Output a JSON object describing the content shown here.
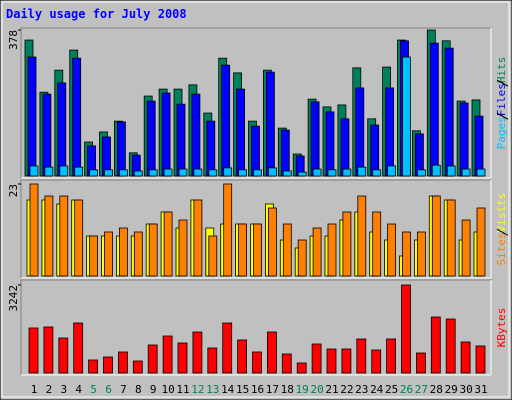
{
  "chart_data": {
    "type": "bar",
    "title": "Daily usage for July 2008",
    "categories": [
      "1",
      "2",
      "3",
      "4",
      "5",
      "6",
      "7",
      "8",
      "9",
      "10",
      "11",
      "12",
      "13",
      "14",
      "15",
      "16",
      "17",
      "18",
      "19",
      "20",
      "21",
      "22",
      "23",
      "24",
      "25",
      "26",
      "27",
      "28",
      "29",
      "30",
      "31"
    ],
    "label_colors": [
      "#000000",
      "#000000",
      "#000000",
      "#000000",
      "#00805c",
      "#00805c",
      "#000000",
      "#000000",
      "#000000",
      "#000000",
      "#000000",
      "#00805c",
      "#00805c",
      "#000000",
      "#000000",
      "#000000",
      "#000000",
      "#000000",
      "#00805c",
      "#00805c",
      "#000000",
      "#000000",
      "#000000",
      "#000000",
      "#000000",
      "#00805c",
      "#00805c",
      "#000000",
      "#000000",
      "#000000",
      "#000000"
    ],
    "panels": [
      {
        "ylim": [
          0,
          378
        ],
        "yticks": [
          378
        ],
        "series": [
          {
            "name": "Hits",
            "color": "#00805c",
            "values": [
              352,
              217,
              274,
              326,
              88,
              114,
              142,
              60,
              207,
              225,
              225,
              236,
              163,
              305,
              267,
              142,
              274,
              124,
              57,
              199,
              179,
              184,
              280,
              148,
              282,
              352,
              117,
              378,
              350,
              194,
              197
            ]
          },
          {
            "name": "Files",
            "color": "#0000ff",
            "values": [
              308,
              212,
              241,
              305,
              78,
              101,
              140,
              54,
              194,
              215,
              186,
              212,
              142,
              287,
              225,
              129,
              269,
              119,
              52,
              192,
              166,
              148,
              228,
              132,
              228,
              350,
              109,
              344,
              331,
              189,
              155
            ]
          },
          {
            "name": "Pages",
            "color": "#00c0ff",
            "values": [
              26,
              23,
              26,
              23,
              16,
              16,
              16,
              13,
              16,
              18,
              18,
              18,
              16,
              21,
              16,
              16,
              21,
              13,
              10,
              18,
              16,
              18,
              23,
              16,
              26,
              308,
              16,
              28,
              26,
              18,
              18
            ]
          }
        ]
      },
      {
        "ylim": [
          0,
          23
        ],
        "yticks": [
          23
        ],
        "series": [
          {
            "name": "Visits",
            "color": "#ffff00",
            "values": [
              19,
              19,
              18,
              19,
              10,
              10,
              10,
              10,
              13,
              16,
              12,
              19,
              12,
              13,
              13,
              13,
              18,
              9,
              7,
              10,
              10,
              14,
              16,
              11,
              9,
              5,
              9,
              20,
              19,
              9,
              11
            ]
          },
          {
            "name": "Sites",
            "color": "#ff8000",
            "values": [
              23,
              20,
              20,
              19,
              10,
              11,
              12,
              11,
              13,
              16,
              14,
              19,
              10,
              23,
              13,
              13,
              17,
              13,
              9,
              12,
              13,
              16,
              20,
              16,
              13,
              11,
              11,
              20,
              19,
              14,
              17
            ]
          }
        ]
      },
      {
        "ylim": [
          0,
          3242
        ],
        "yticks": [
          3242
        ],
        "series": [
          {
            "name": "KBytes",
            "color": "#ff0000",
            "values": [
              1658,
              1695,
              1289,
              1842,
              479,
              589,
              774,
              442,
              1032,
              1363,
              1105,
              1510,
              921,
              1842,
              1216,
              774,
              1510,
              700,
              368,
              1068,
              884,
              884,
              1253,
              847,
              1253,
              3242,
              737,
              2063,
              1989,
              1142,
              995
            ]
          }
        ]
      }
    ]
  }
}
